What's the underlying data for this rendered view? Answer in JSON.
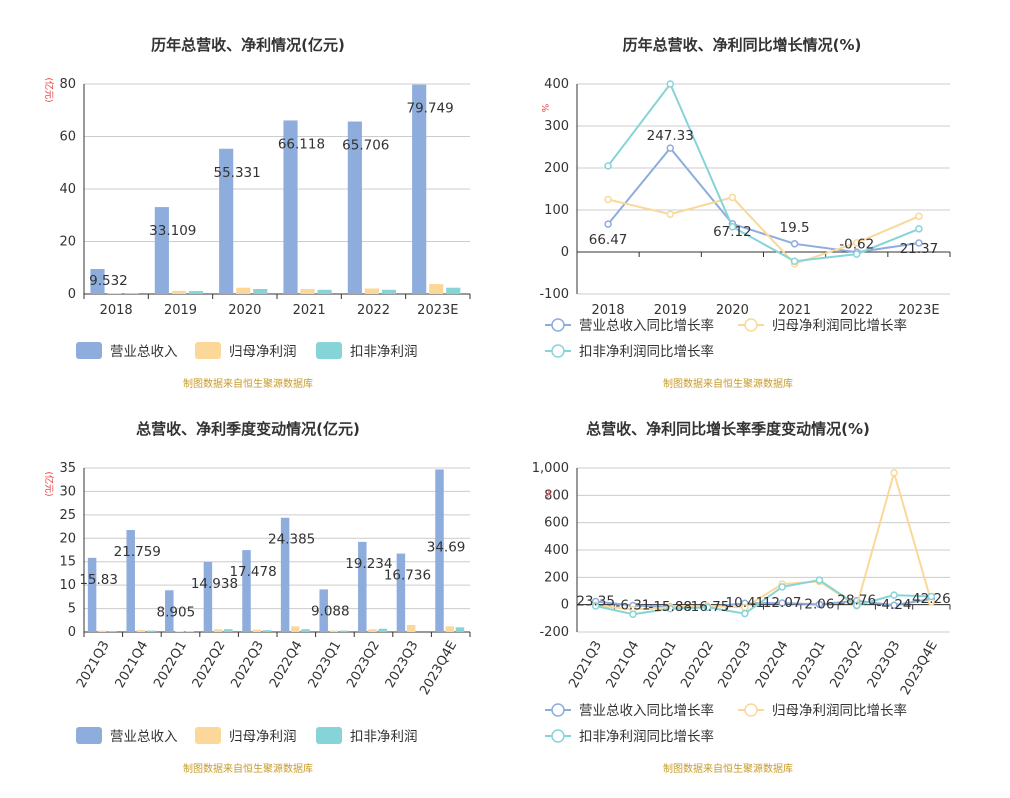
{
  "colors": {
    "revenue": "#8eaddd",
    "parent_profit": "#fbd89a",
    "deducted_profit": "#86d4d8",
    "axis": "#333333",
    "grid": "#cccccc",
    "unit_label": "#e63232",
    "source": "#c89b2a",
    "title": "#333333"
  },
  "source_note": "制图数据来自恒生聚源数据库",
  "chart_data": [
    {
      "id": "annual_amount",
      "type": "bar",
      "title": "历年总营收、净利情况(亿元)",
      "ylabel": "(亿元)",
      "categories": [
        "2018",
        "2019",
        "2020",
        "2021",
        "2022",
        "2023E"
      ],
      "ylim": [
        0,
        80
      ],
      "yticks": [
        0,
        20,
        40,
        60,
        80
      ],
      "ytick_labels": [
        "0",
        "20",
        "40",
        "60",
        "80"
      ],
      "series": [
        {
          "name": "营业总收入",
          "values": [
            9.532,
            33.109,
            55.331,
            66.118,
            65.706,
            79.749
          ]
        },
        {
          "name": "归母净利润",
          "values": [
            0.4,
            1.2,
            2.4,
            1.9,
            2.1,
            3.8
          ]
        },
        {
          "name": "扣非净利润",
          "values": [
            0.3,
            1.1,
            1.9,
            1.6,
            1.6,
            2.4
          ]
        }
      ],
      "labels": [
        "9.532",
        "33.109",
        "55.331",
        "66.118",
        "65.706",
        "79.749"
      ]
    },
    {
      "id": "annual_growth",
      "type": "line",
      "title": "历年总营收、净利同比增长情况(%)",
      "ylabel": "%",
      "categories": [
        "2018",
        "2019",
        "2020",
        "2021",
        "2022",
        "2023E"
      ],
      "ylim": [
        -100,
        400
      ],
      "yticks": [
        -100,
        0,
        100,
        200,
        300,
        400
      ],
      "ytick_labels": [
        "-100",
        "0",
        "100",
        "200",
        "300",
        "400"
      ],
      "series": [
        {
          "name": "营业总收入同比增长率",
          "values": [
            66.47,
            247.33,
            67.12,
            19.5,
            -0.62,
            21.37
          ]
        },
        {
          "name": "归母净利润同比增长率",
          "values": [
            125,
            90,
            130,
            -28,
            22,
            85
          ]
        },
        {
          "name": "扣非净利润同比增长率",
          "values": [
            205,
            400,
            60,
            -22,
            -5,
            55
          ]
        }
      ],
      "labels": [
        "66.47",
        "247.33",
        "67.12",
        "19.5",
        "-0.62",
        "21.37"
      ]
    },
    {
      "id": "quarterly_amount",
      "type": "bar",
      "title": "总营收、净利季度变动情况(亿元)",
      "ylabel": "(亿元)",
      "categories": [
        "2021Q3",
        "2021Q4",
        "2022Q1",
        "2022Q2",
        "2022Q3",
        "2022Q4",
        "2023Q1",
        "2023Q2",
        "2023Q3",
        "2023Q4E"
      ],
      "ylim": [
        0,
        35
      ],
      "yticks": [
        0,
        5,
        10,
        15,
        20,
        25,
        30,
        35
      ],
      "ytick_labels": [
        "0",
        "5",
        "10",
        "15",
        "20",
        "25",
        "30",
        "35"
      ],
      "series": [
        {
          "name": "营业总收入",
          "values": [
            15.83,
            21.759,
            8.905,
            14.938,
            17.478,
            24.385,
            9.088,
            19.234,
            16.736,
            34.69
          ]
        },
        {
          "name": "归母净利润",
          "values": [
            0.3,
            0.4,
            0.1,
            0.6,
            0.5,
            1.2,
            0.3,
            0.6,
            1.5,
            1.2
          ]
        },
        {
          "name": "扣非净利润",
          "values": [
            0.2,
            0.3,
            0.1,
            0.6,
            0.4,
            0.6,
            0.3,
            0.7,
            0.0,
            1.0
          ]
        }
      ],
      "labels": [
        "15.83",
        "21.759",
        "8.905",
        "14.938",
        "17.478",
        "24.385",
        "9.088",
        "19.234",
        "16.736",
        "34.69"
      ]
    },
    {
      "id": "quarterly_growth",
      "type": "line",
      "title": "总营收、净利同比增长率季度变动情况(%)",
      "ylabel": "%",
      "categories": [
        "2021Q3",
        "2021Q4",
        "2022Q1",
        "2022Q2",
        "2022Q3",
        "2022Q4",
        "2023Q1",
        "2023Q2",
        "2023Q3",
        "2023Q4E"
      ],
      "ylim": [
        -200,
        1000
      ],
      "yticks": [
        -200,
        0,
        200,
        400,
        600,
        800,
        1000
      ],
      "ytick_labels": [
        "-200",
        "0",
        "200",
        "400",
        "600",
        "800",
        "1,000"
      ],
      "series": [
        {
          "name": "营业总收入同比增长率",
          "values": [
            23.35,
            -6.31,
            -15.88,
            -16.75,
            10.41,
            12.07,
            2.06,
            28.76,
            -4.24,
            42.26
          ]
        },
        {
          "name": "归母净利润同比增长率",
          "values": [
            -5,
            -35,
            -20,
            -10,
            -20,
            150,
            170,
            -10,
            965,
            20
          ]
        },
        {
          "name": "扣非净利润同比增长率",
          "values": [
            -10,
            -70,
            -30,
            -20,
            -65,
            130,
            180,
            -5,
            70,
            60
          ]
        }
      ],
      "labels": [
        "23.35",
        "-6.31",
        "-15.88",
        "-16.75",
        "10.41",
        "12.07",
        "2.06",
        "28.76",
        "-4.24",
        "42.26"
      ]
    }
  ]
}
